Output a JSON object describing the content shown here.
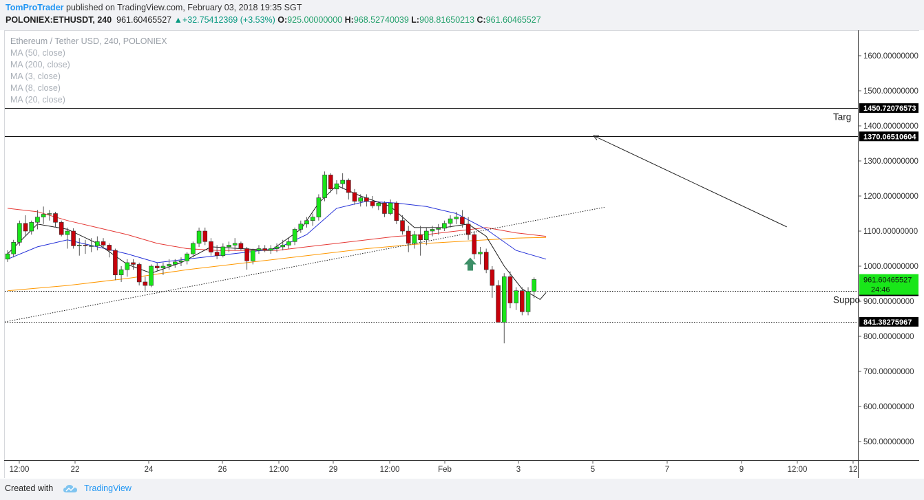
{
  "header": {
    "publisher": "TomProTrader",
    "published_text": "published on TradingView.com, February 03, 2018 19:35 SGT",
    "symbol": "POLONIEX:ETHUSDT, 240",
    "last": "961.60465527",
    "change": "+32.75412369 (+3.53%)",
    "open_label": "O:",
    "open": "925.00000000",
    "high_label": "H:",
    "high": "968.52740039",
    "low_label": "L:",
    "low": "908.81650213",
    "close_label": "C:",
    "close": "961.60465527"
  },
  "legend": {
    "title": "Ethereum / Tether USD, 240, POLONIEX",
    "studies": [
      "MA (50, close)",
      "MA (200, close)",
      "MA (3, close)",
      "MA (8, close)",
      "MA (20, close)"
    ]
  },
  "footer": {
    "created_with": "Created with",
    "brand": "TradingView"
  },
  "colors": {
    "up_candle": "#19e619",
    "down_candle": "#c7000b",
    "ma_8": "#1a1a1a",
    "ma_20": "#2430d8",
    "ma_50": "#e53935",
    "ma_200": "#ff9800",
    "price_up_badge": "#19e619",
    "axis_badge": "#000000",
    "arrow_marker": "#3d8f67"
  },
  "chart_data": {
    "type": "candlestick",
    "x_tick_labels": [
      "12:00",
      "22",
      "24",
      "26",
      "12:00",
      "29",
      "12:00",
      "Feb",
      "3",
      "5",
      "7",
      "9",
      "12:00",
      "12"
    ],
    "y_tick_labels": [
      "1600.00000000",
      "1500.00000000",
      "1400.00000000",
      "1300.00000000",
      "1200.00000000",
      "1100.00000000",
      "1000.00000000",
      "900.00000000",
      "800.00000000",
      "700.00000000",
      "600.00000000",
      "500.00000000"
    ],
    "y_ticks": [
      1600,
      1500,
      1400,
      1300,
      1200,
      1100,
      1000,
      900,
      800,
      700,
      600,
      500
    ],
    "ylim": [
      460,
      1655
    ],
    "horizontal_levels": [
      {
        "value": 1450.72076573,
        "label": "1450.72076573",
        "annotation": "Targ",
        "style": "solid"
      },
      {
        "value": 1370.06510604,
        "label": "1370.06510604",
        "annotation": "",
        "style": "solid"
      },
      {
        "value": 928.57340351,
        "label": "928.57340351",
        "annotation": "Suppo",
        "style": "dotted"
      },
      {
        "value": 841.38275967,
        "label": "841.38275967",
        "annotation": "",
        "style": "dotted"
      }
    ],
    "current_price": {
      "value": 961.60465527,
      "label": "961.60465527",
      "countdown": "24:46"
    },
    "trendline": {
      "from": [
        0,
        841
      ],
      "to": [
        165,
        1168
      ],
      "style": "dotted"
    },
    "projection_arrow": {
      "from": [
        130,
        1112
      ],
      "to": [
        160,
        1372
      ]
    },
    "up_marker": {
      "x": 127,
      "y": 1005
    },
    "candles": [
      [
        1020,
        1045,
        1012,
        1035
      ],
      [
        1035,
        1075,
        1025,
        1068
      ],
      [
        1068,
        1130,
        1058,
        1122
      ],
      [
        1122,
        1145,
        1085,
        1100
      ],
      [
        1100,
        1130,
        1090,
        1125
      ],
      [
        1125,
        1160,
        1105,
        1140
      ],
      [
        1140,
        1170,
        1120,
        1148
      ],
      [
        1148,
        1160,
        1130,
        1150
      ],
      [
        1150,
        1155,
        1110,
        1125
      ],
      [
        1125,
        1130,
        1085,
        1090
      ],
      [
        1090,
        1110,
        1050,
        1100
      ],
      [
        1100,
        1108,
        1050,
        1058
      ],
      [
        1058,
        1080,
        1030,
        1060
      ],
      [
        1060,
        1075,
        1035,
        1058
      ],
      [
        1058,
        1080,
        1040,
        1058
      ],
      [
        1058,
        1085,
        1045,
        1070
      ],
      [
        1070,
        1080,
        1050,
        1060
      ],
      [
        1060,
        1065,
        1025,
        1045
      ],
      [
        1045,
        1050,
        960,
        975
      ],
      [
        975,
        1000,
        955,
        990
      ],
      [
        990,
        1020,
        970,
        1010
      ],
      [
        1010,
        1020,
        990,
        1005
      ],
      [
        1005,
        1010,
        945,
        955
      ],
      [
        955,
        970,
        930,
        945
      ],
      [
        945,
        1005,
        940,
        1000
      ],
      [
        1000,
        1010,
        985,
        995
      ],
      [
        995,
        1010,
        975,
        1000
      ],
      [
        1000,
        1020,
        990,
        1005
      ],
      [
        1005,
        1020,
        995,
        1012
      ],
      [
        1012,
        1025,
        1000,
        1015
      ],
      [
        1015,
        1040,
        1005,
        1035
      ],
      [
        1035,
        1070,
        1025,
        1065
      ],
      [
        1065,
        1110,
        1055,
        1100
      ],
      [
        1100,
        1110,
        1060,
        1070
      ],
      [
        1070,
        1080,
        1030,
        1040
      ],
      [
        1040,
        1060,
        1020,
        1030
      ],
      [
        1030,
        1065,
        1025,
        1055
      ],
      [
        1055,
        1070,
        1040,
        1060
      ],
      [
        1060,
        1080,
        1045,
        1065
      ],
      [
        1065,
        1070,
        1045,
        1050
      ],
      [
        1050,
        1055,
        990,
        1015
      ],
      [
        1015,
        1050,
        1005,
        1045
      ],
      [
        1045,
        1060,
        1035,
        1050
      ],
      [
        1050,
        1060,
        1040,
        1045
      ],
      [
        1045,
        1060,
        1035,
        1050
      ],
      [
        1050,
        1065,
        1040,
        1055
      ],
      [
        1055,
        1075,
        1045,
        1060
      ],
      [
        1060,
        1080,
        1050,
        1070
      ],
      [
        1070,
        1110,
        1060,
        1105
      ],
      [
        1105,
        1130,
        1095,
        1120
      ],
      [
        1120,
        1140,
        1110,
        1130
      ],
      [
        1130,
        1150,
        1115,
        1140
      ],
      [
        1140,
        1205,
        1130,
        1195
      ],
      [
        1195,
        1270,
        1185,
        1260
      ],
      [
        1260,
        1265,
        1210,
        1220
      ],
      [
        1220,
        1245,
        1205,
        1235
      ],
      [
        1235,
        1265,
        1220,
        1245
      ],
      [
        1245,
        1250,
        1190,
        1210
      ],
      [
        1210,
        1220,
        1175,
        1185
      ],
      [
        1185,
        1205,
        1170,
        1195
      ],
      [
        1195,
        1205,
        1170,
        1185
      ],
      [
        1185,
        1200,
        1165,
        1172
      ],
      [
        1172,
        1185,
        1160,
        1180
      ],
      [
        1180,
        1185,
        1140,
        1150
      ],
      [
        1150,
        1190,
        1145,
        1180
      ],
      [
        1180,
        1185,
        1120,
        1130
      ],
      [
        1130,
        1145,
        1090,
        1100
      ],
      [
        1100,
        1115,
        1040,
        1065
      ],
      [
        1065,
        1100,
        1050,
        1090
      ],
      [
        1090,
        1115,
        1030,
        1075
      ],
      [
        1075,
        1110,
        1060,
        1100
      ],
      [
        1100,
        1115,
        1085,
        1105
      ],
      [
        1105,
        1120,
        1090,
        1108
      ],
      [
        1108,
        1130,
        1100,
        1122
      ],
      [
        1122,
        1145,
        1110,
        1135
      ],
      [
        1135,
        1155,
        1120,
        1140
      ],
      [
        1140,
        1160,
        1110,
        1120
      ],
      [
        1120,
        1140,
        1075,
        1090
      ],
      [
        1090,
        1100,
        1020,
        1035
      ],
      [
        1035,
        1055,
        1005,
        1040
      ],
      [
        1040,
        1050,
        980,
        990
      ],
      [
        990,
        1000,
        910,
        945
      ],
      [
        945,
        960,
        840,
        840
      ],
      [
        840,
        980,
        780,
        970
      ],
      [
        970,
        985,
        880,
        895
      ],
      [
        895,
        940,
        875,
        930
      ],
      [
        930,
        940,
        860,
        870
      ],
      [
        870,
        940,
        860,
        928
      ],
      [
        928,
        968,
        909,
        962
      ]
    ],
    "ma_8": [
      [
        0,
        1035
      ],
      [
        5,
        1120
      ],
      [
        10,
        1105
      ],
      [
        15,
        1065
      ],
      [
        20,
        1005
      ],
      [
        24,
        980
      ],
      [
        29,
        1010
      ],
      [
        34,
        1055
      ],
      [
        39,
        1050
      ],
      [
        44,
        1045
      ],
      [
        49,
        1105
      ],
      [
        52,
        1180
      ],
      [
        55,
        1230
      ],
      [
        59,
        1200
      ],
      [
        64,
        1170
      ],
      [
        68,
        1110
      ],
      [
        73,
        1110
      ],
      [
        77,
        1120
      ],
      [
        80,
        1085
      ],
      [
        83,
        1000
      ],
      [
        86,
        935
      ],
      [
        89,
        905
      ],
      [
        90,
        925
      ]
    ],
    "ma_20": [
      [
        0,
        1020
      ],
      [
        5,
        1055
      ],
      [
        10,
        1075
      ],
      [
        15,
        1055
      ],
      [
        20,
        1035
      ],
      [
        25,
        1010
      ],
      [
        30,
        1020
      ],
      [
        35,
        1030
      ],
      [
        40,
        1040
      ],
      [
        45,
        1050
      ],
      [
        50,
        1090
      ],
      [
        55,
        1165
      ],
      [
        60,
        1185
      ],
      [
        65,
        1180
      ],
      [
        70,
        1170
      ],
      [
        75,
        1150
      ],
      [
        80,
        1105
      ],
      [
        85,
        1045
      ],
      [
        90,
        1020
      ]
    ],
    "ma_50": [
      [
        0,
        1165
      ],
      [
        5,
        1155
      ],
      [
        10,
        1130
      ],
      [
        15,
        1110
      ],
      [
        20,
        1090
      ],
      [
        25,
        1065
      ],
      [
        30,
        1050
      ],
      [
        35,
        1045
      ],
      [
        40,
        1045
      ],
      [
        45,
        1045
      ],
      [
        50,
        1055
      ],
      [
        55,
        1065
      ],
      [
        60,
        1075
      ],
      [
        65,
        1085
      ],
      [
        70,
        1090
      ],
      [
        75,
        1100
      ],
      [
        80,
        1110
      ],
      [
        85,
        1095
      ],
      [
        90,
        1085
      ]
    ],
    "ma_200": [
      [
        0,
        930
      ],
      [
        10,
        945
      ],
      [
        20,
        965
      ],
      [
        30,
        990
      ],
      [
        40,
        1010
      ],
      [
        50,
        1030
      ],
      [
        60,
        1050
      ],
      [
        70,
        1065
      ],
      [
        80,
        1075
      ],
      [
        85,
        1080
      ],
      [
        90,
        1082
      ]
    ]
  }
}
